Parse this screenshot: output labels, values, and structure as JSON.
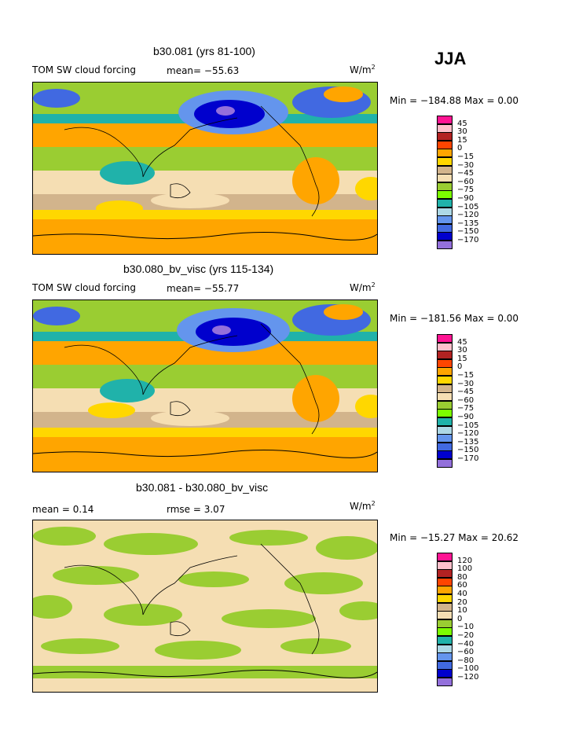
{
  "season": "JJA",
  "units_main": "W/m",
  "units_sup": "2",
  "panels": [
    {
      "title": "b30.081 (yrs 81-100)",
      "left_label": "TOM SW cloud forcing",
      "mid_label": "mean= −55.63",
      "minmax": "Min = −184.88 Max =    0.00"
    },
    {
      "title": "b30.080_bv_visc (yrs 115-134)",
      "left_label": "TOM SW cloud forcing",
      "mid_label": "mean= −55.77",
      "minmax": "Min = −181.56 Max =    0.00"
    },
    {
      "title": "b30.081 - b30.080_bv_visc",
      "left_label": "mean =    0.14",
      "mid_label": "rmse =   3.07",
      "minmax": "Min = −15.27 Max =  20.62"
    }
  ],
  "chart_data": [
    {
      "type": "heatmap",
      "title": "b30.081 (yrs 81-100)",
      "variable": "TOM SW cloud forcing",
      "units": "W/m2",
      "mean": -55.63,
      "min": -184.88,
      "max": 0.0,
      "colorbar": {
        "levels": [
          "45",
          "30",
          "15",
          "0",
          "−15",
          "−30",
          "−45",
          "−60",
          "−75",
          "−90",
          "−105",
          "−120",
          "−135",
          "−150",
          "−170"
        ],
        "colors": [
          "#ff1493",
          "#ffc0cb",
          "#b22222",
          "#ff4500",
          "#ffa500",
          "#ffd700",
          "#d2b48c",
          "#f5deb3",
          "#9acd32",
          "#7cfc00",
          "#20b2aa",
          "#add8e6",
          "#6495ed",
          "#4169e1",
          "#0000cd",
          "#9370db"
        ]
      }
    },
    {
      "type": "heatmap",
      "title": "b30.080_bv_visc (yrs 115-134)",
      "variable": "TOM SW cloud forcing",
      "units": "W/m2",
      "mean": -55.77,
      "min": -181.56,
      "max": 0.0,
      "colorbar": {
        "levels": [
          "45",
          "30",
          "15",
          "0",
          "−15",
          "−30",
          "−45",
          "−60",
          "−75",
          "−90",
          "−105",
          "−120",
          "−135",
          "−150",
          "−170"
        ],
        "colors": [
          "#ff1493",
          "#ffc0cb",
          "#b22222",
          "#ff4500",
          "#ffa500",
          "#ffd700",
          "#d2b48c",
          "#f5deb3",
          "#9acd32",
          "#7cfc00",
          "#20b2aa",
          "#add8e6",
          "#6495ed",
          "#4169e1",
          "#0000cd",
          "#9370db"
        ]
      }
    },
    {
      "type": "heatmap",
      "title": "b30.081 - b30.080_bv_visc",
      "units": "W/m2",
      "mean": 0.14,
      "rmse": 3.07,
      "min": -15.27,
      "max": 20.62,
      "colorbar": {
        "levels": [
          "120",
          "100",
          "80",
          "60",
          "40",
          "20",
          "10",
          "0",
          "−10",
          "−20",
          "−40",
          "−60",
          "−80",
          "−100",
          "−120"
        ],
        "colors": [
          "#ff1493",
          "#ffc0cb",
          "#b22222",
          "#ff4500",
          "#ffa500",
          "#ffd700",
          "#d2b48c",
          "#f5deb3",
          "#9acd32",
          "#7cfc00",
          "#20b2aa",
          "#add8e6",
          "#6495ed",
          "#4169e1",
          "#0000cd",
          "#9370db"
        ]
      }
    }
  ]
}
